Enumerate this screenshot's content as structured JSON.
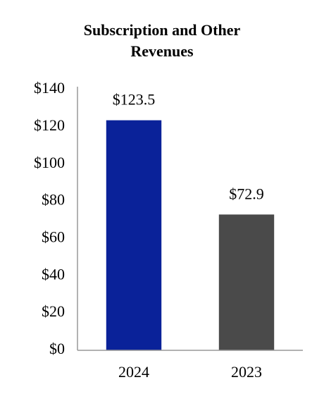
{
  "chart_data": {
    "type": "bar",
    "title": "Subscription and Other Revenues",
    "categories": [
      "2024",
      "2023"
    ],
    "values": [
      123.5,
      72.9
    ],
    "value_labels": [
      "$123.5",
      "$72.9"
    ],
    "colors": [
      "#0a2299",
      "#4a4a4a"
    ],
    "ylim": [
      0,
      140
    ],
    "yticks": [
      {
        "value": 0,
        "label": "$0"
      },
      {
        "value": 20,
        "label": "$20"
      },
      {
        "value": 40,
        "label": "$40"
      },
      {
        "value": 60,
        "label": "$60"
      },
      {
        "value": 80,
        "label": "$80"
      },
      {
        "value": 100,
        "label": "$100"
      },
      {
        "value": 120,
        "label": "$120"
      },
      {
        "value": 140,
        "label": "$140"
      }
    ],
    "grid": false
  }
}
